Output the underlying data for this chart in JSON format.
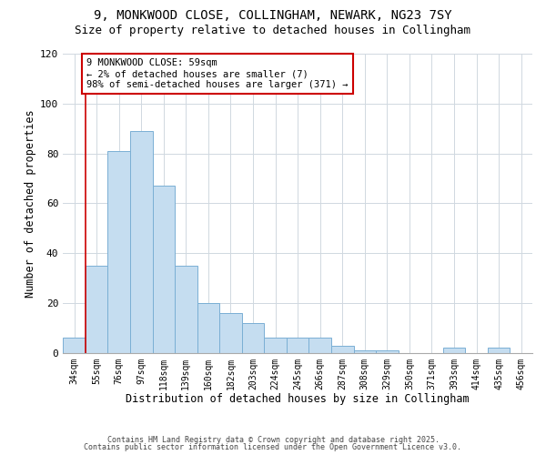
{
  "title": "9, MONKWOOD CLOSE, COLLINGHAM, NEWARK, NG23 7SY",
  "subtitle": "Size of property relative to detached houses in Collingham",
  "xlabel": "Distribution of detached houses by size in Collingham",
  "ylabel": "Number of detached properties",
  "bar_labels": [
    "34sqm",
    "55sqm",
    "76sqm",
    "97sqm",
    "118sqm",
    "139sqm",
    "160sqm",
    "182sqm",
    "203sqm",
    "224sqm",
    "245sqm",
    "266sqm",
    "287sqm",
    "308sqm",
    "329sqm",
    "350sqm",
    "371sqm",
    "393sqm",
    "414sqm",
    "435sqm",
    "456sqm"
  ],
  "bar_values": [
    6,
    35,
    81,
    89,
    67,
    35,
    20,
    16,
    12,
    6,
    6,
    6,
    3,
    1,
    1,
    0,
    0,
    2,
    0,
    2,
    0
  ],
  "bar_color": "#c5ddf0",
  "bar_edge_color": "#7aafd4",
  "vline_x": 0.5,
  "vline_color": "#cc0000",
  "annotation_text": "9 MONKWOOD CLOSE: 59sqm\n← 2% of detached houses are smaller (7)\n98% of semi-detached houses are larger (371) →",
  "annotation_box_color": "#ffffff",
  "annotation_box_edge": "#cc0000",
  "ylim": [
    0,
    120
  ],
  "yticks": [
    0,
    20,
    40,
    60,
    80,
    100,
    120
  ],
  "footer1": "Contains HM Land Registry data © Crown copyright and database right 2025.",
  "footer2": "Contains public sector information licensed under the Open Government Licence v3.0.",
  "title_fontsize": 10,
  "subtitle_fontsize": 9,
  "xlabel_fontsize": 8.5,
  "ylabel_fontsize": 8.5,
  "annotation_fontsize": 7.5,
  "footer_fontsize": 6.0
}
